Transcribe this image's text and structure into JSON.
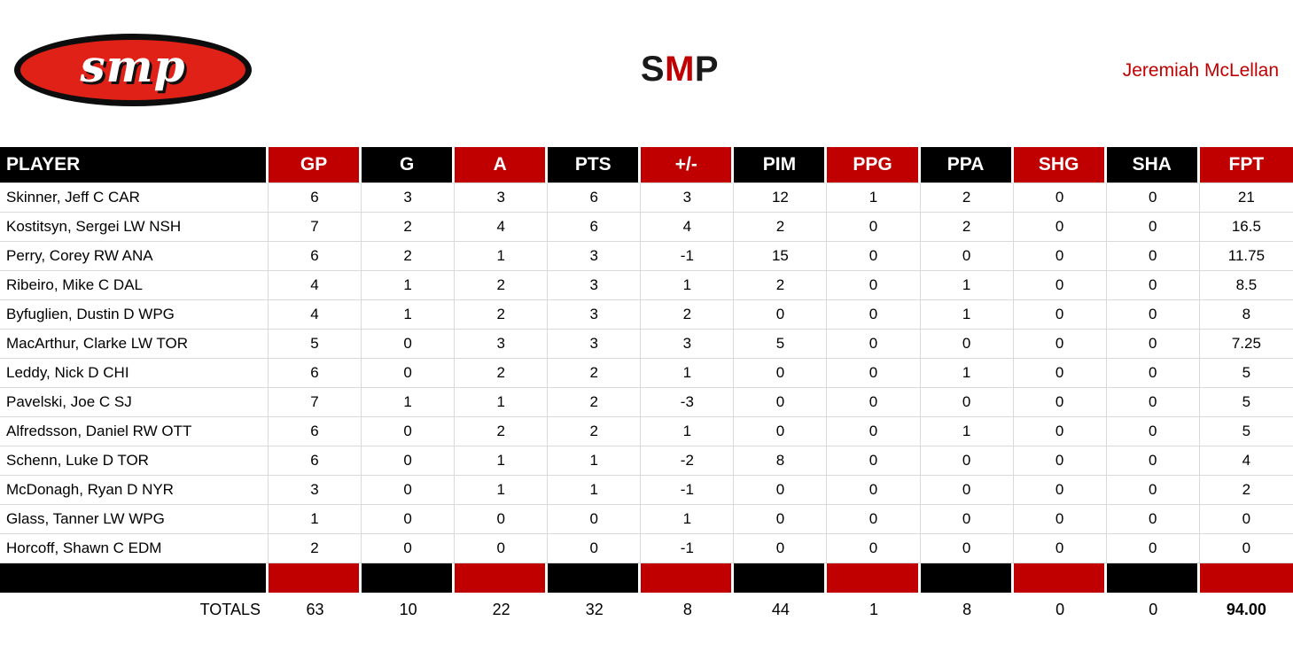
{
  "header": {
    "logo_text": "smp",
    "title_parts": [
      {
        "text": "S",
        "color": "#1a1a1a"
      },
      {
        "text": "M",
        "color": "#c00000"
      },
      {
        "text": "P",
        "color": "#1a1a1a"
      }
    ],
    "owner_name": "Jeremiah McLellan"
  },
  "colors": {
    "red": "#c00000",
    "black": "#000000",
    "logo_red": "#df2118",
    "owner_red": "#c00000",
    "grid": "#d9d9d9"
  },
  "table": {
    "columns": [
      "PLAYER",
      "GP",
      "G",
      "A",
      "PTS",
      "+/-",
      "PIM",
      "PPG",
      "PPA",
      "SHG",
      "SHA",
      "FPT"
    ],
    "rows": [
      {
        "player": "Skinner, Jeff C CAR",
        "values": [
          "6",
          "3",
          "3",
          "6",
          "3",
          "12",
          "1",
          "2",
          "0",
          "0",
          "21"
        ]
      },
      {
        "player": "Kostitsyn, Sergei LW NSH",
        "values": [
          "7",
          "2",
          "4",
          "6",
          "4",
          "2",
          "0",
          "2",
          "0",
          "0",
          "16.5"
        ]
      },
      {
        "player": "Perry, Corey RW ANA",
        "values": [
          "6",
          "2",
          "1",
          "3",
          "-1",
          "15",
          "0",
          "0",
          "0",
          "0",
          "11.75"
        ]
      },
      {
        "player": "Ribeiro, Mike C DAL",
        "values": [
          "4",
          "1",
          "2",
          "3",
          "1",
          "2",
          "0",
          "1",
          "0",
          "0",
          "8.5"
        ]
      },
      {
        "player": "Byfuglien, Dustin D WPG",
        "values": [
          "4",
          "1",
          "2",
          "3",
          "2",
          "0",
          "0",
          "1",
          "0",
          "0",
          "8"
        ]
      },
      {
        "player": "MacArthur, Clarke LW TOR",
        "values": [
          "5",
          "0",
          "3",
          "3",
          "3",
          "5",
          "0",
          "0",
          "0",
          "0",
          "7.25"
        ]
      },
      {
        "player": "Leddy, Nick D CHI",
        "values": [
          "6",
          "0",
          "2",
          "2",
          "1",
          "0",
          "0",
          "1",
          "0",
          "0",
          "5"
        ]
      },
      {
        "player": "Pavelski, Joe C SJ",
        "values": [
          "7",
          "1",
          "1",
          "2",
          "-3",
          "0",
          "0",
          "0",
          "0",
          "0",
          "5"
        ]
      },
      {
        "player": "Alfredsson, Daniel RW OTT",
        "values": [
          "6",
          "0",
          "2",
          "2",
          "1",
          "0",
          "0",
          "1",
          "0",
          "0",
          "5"
        ]
      },
      {
        "player": "Schenn, Luke D TOR",
        "values": [
          "6",
          "0",
          "1",
          "1",
          "-2",
          "8",
          "0",
          "0",
          "0",
          "0",
          "4"
        ]
      },
      {
        "player": "McDonagh, Ryan D NYR",
        "values": [
          "3",
          "0",
          "1",
          "1",
          "-1",
          "0",
          "0",
          "0",
          "0",
          "0",
          "2"
        ]
      },
      {
        "player": "Glass, Tanner LW WPG",
        "values": [
          "1",
          "0",
          "0",
          "0",
          "1",
          "0",
          "0",
          "0",
          "0",
          "0",
          "0"
        ]
      },
      {
        "player": "Horcoff, Shawn C EDM",
        "values": [
          "2",
          "0",
          "0",
          "0",
          "-1",
          "0",
          "0",
          "0",
          "0",
          "0",
          "0"
        ]
      }
    ],
    "totals_label": "TOTALS",
    "totals": [
      "63",
      "10",
      "22",
      "32",
      "8",
      "44",
      "1",
      "8",
      "0",
      "0",
      "94.00"
    ]
  }
}
